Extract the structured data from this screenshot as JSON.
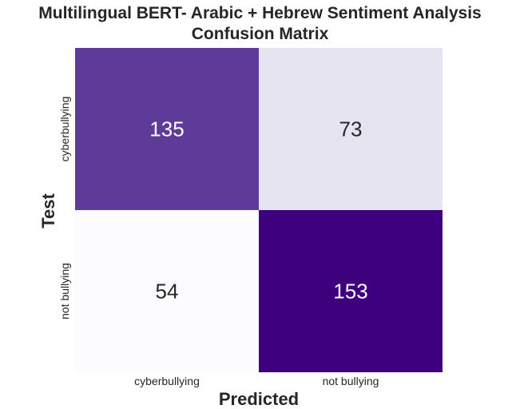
{
  "chart_data": {
    "type": "heatmap",
    "title": "Multilingual BERT- Arabic + Hebrew Sentiment Analysis",
    "subtitle": "Confusion Matrix",
    "xlabel": "Predicted",
    "ylabel": "Test",
    "x_categories": [
      "cyberbullying",
      "not bullying"
    ],
    "y_categories": [
      "cyberbullying",
      "not bullying"
    ],
    "values": [
      [
        135,
        73
      ],
      [
        54,
        153
      ]
    ],
    "colormap": "purples",
    "color_min": "#fcfbfd",
    "color_max": "#3f007d",
    "grid": false
  }
}
